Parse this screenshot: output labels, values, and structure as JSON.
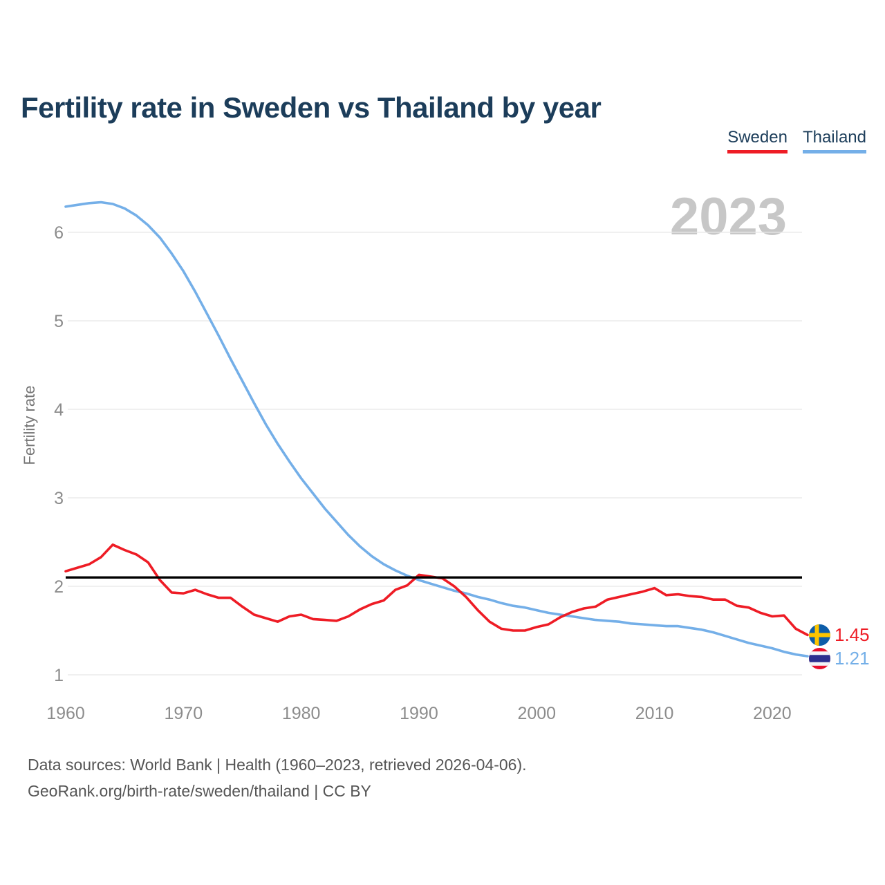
{
  "title": "Fertility rate in Sweden vs Thailand by year",
  "legend": {
    "sweden_label": "Sweden",
    "thailand_label": "Thailand"
  },
  "watermark": "2023",
  "chart_data": {
    "type": "line",
    "title": "Fertility rate in Sweden vs Thailand by year",
    "xlabel": "",
    "ylabel": "Fertility rate",
    "xlim": [
      1960,
      2023
    ],
    "ylim": [
      1,
      6.5
    ],
    "grid": "horizontal",
    "legend_position": "top-right",
    "x_ticks": [
      1960,
      1970,
      1980,
      1990,
      2000,
      2010,
      2020
    ],
    "y_ticks": [
      1,
      2,
      3,
      4,
      5,
      6
    ],
    "reference_line": {
      "value": 2.1,
      "color": "#000000",
      "meaning": "replacement fertility"
    },
    "x": [
      1960,
      1961,
      1962,
      1963,
      1964,
      1965,
      1966,
      1967,
      1968,
      1969,
      1970,
      1971,
      1972,
      1973,
      1974,
      1975,
      1976,
      1977,
      1978,
      1979,
      1980,
      1981,
      1982,
      1983,
      1984,
      1985,
      1986,
      1987,
      1988,
      1989,
      1990,
      1991,
      1992,
      1993,
      1994,
      1995,
      1996,
      1997,
      1998,
      1999,
      2000,
      2001,
      2002,
      2003,
      2004,
      2005,
      2006,
      2007,
      2008,
      2009,
      2010,
      2011,
      2012,
      2013,
      2014,
      2015,
      2016,
      2017,
      2018,
      2019,
      2020,
      2021,
      2022,
      2023
    ],
    "series": [
      {
        "name": "Sweden",
        "color": "#ee1c25",
        "values": [
          2.17,
          2.21,
          2.25,
          2.33,
          2.47,
          2.41,
          2.36,
          2.27,
          2.07,
          1.93,
          1.92,
          1.96,
          1.91,
          1.87,
          1.87,
          1.77,
          1.68,
          1.64,
          1.6,
          1.66,
          1.68,
          1.63,
          1.62,
          1.61,
          1.66,
          1.74,
          1.8,
          1.84,
          1.96,
          2.01,
          2.13,
          2.11,
          2.09,
          2.0,
          1.88,
          1.73,
          1.6,
          1.52,
          1.5,
          1.5,
          1.54,
          1.57,
          1.65,
          1.71,
          1.75,
          1.77,
          1.85,
          1.88,
          1.91,
          1.94,
          1.98,
          1.9,
          1.91,
          1.89,
          1.88,
          1.85,
          1.85,
          1.78,
          1.76,
          1.7,
          1.66,
          1.67,
          1.52,
          1.45
        ]
      },
      {
        "name": "Thailand",
        "color": "#74afe8",
        "values": [
          6.29,
          6.31,
          6.33,
          6.34,
          6.32,
          6.27,
          6.19,
          6.08,
          5.94,
          5.76,
          5.56,
          5.33,
          5.08,
          4.83,
          4.57,
          4.32,
          4.07,
          3.83,
          3.61,
          3.41,
          3.22,
          3.05,
          2.88,
          2.73,
          2.58,
          2.45,
          2.34,
          2.25,
          2.18,
          2.12,
          2.07,
          2.03,
          1.99,
          1.95,
          1.92,
          1.88,
          1.85,
          1.81,
          1.78,
          1.76,
          1.73,
          1.7,
          1.68,
          1.66,
          1.64,
          1.62,
          1.61,
          1.6,
          1.58,
          1.57,
          1.56,
          1.55,
          1.55,
          1.53,
          1.51,
          1.48,
          1.44,
          1.4,
          1.36,
          1.33,
          1.3,
          1.26,
          1.23,
          1.21
        ]
      }
    ],
    "end_labels": [
      {
        "series": "Sweden",
        "value": "1.45",
        "flag": "sweden"
      },
      {
        "series": "Thailand",
        "value": "1.21",
        "flag": "thailand"
      }
    ]
  },
  "footer": {
    "line1": "Data sources: World Bank | Health (1960–2023, retrieved 2026-04-06).",
    "line2": "GeoRank.org/birth-rate/sweden/thailand | CC BY"
  }
}
